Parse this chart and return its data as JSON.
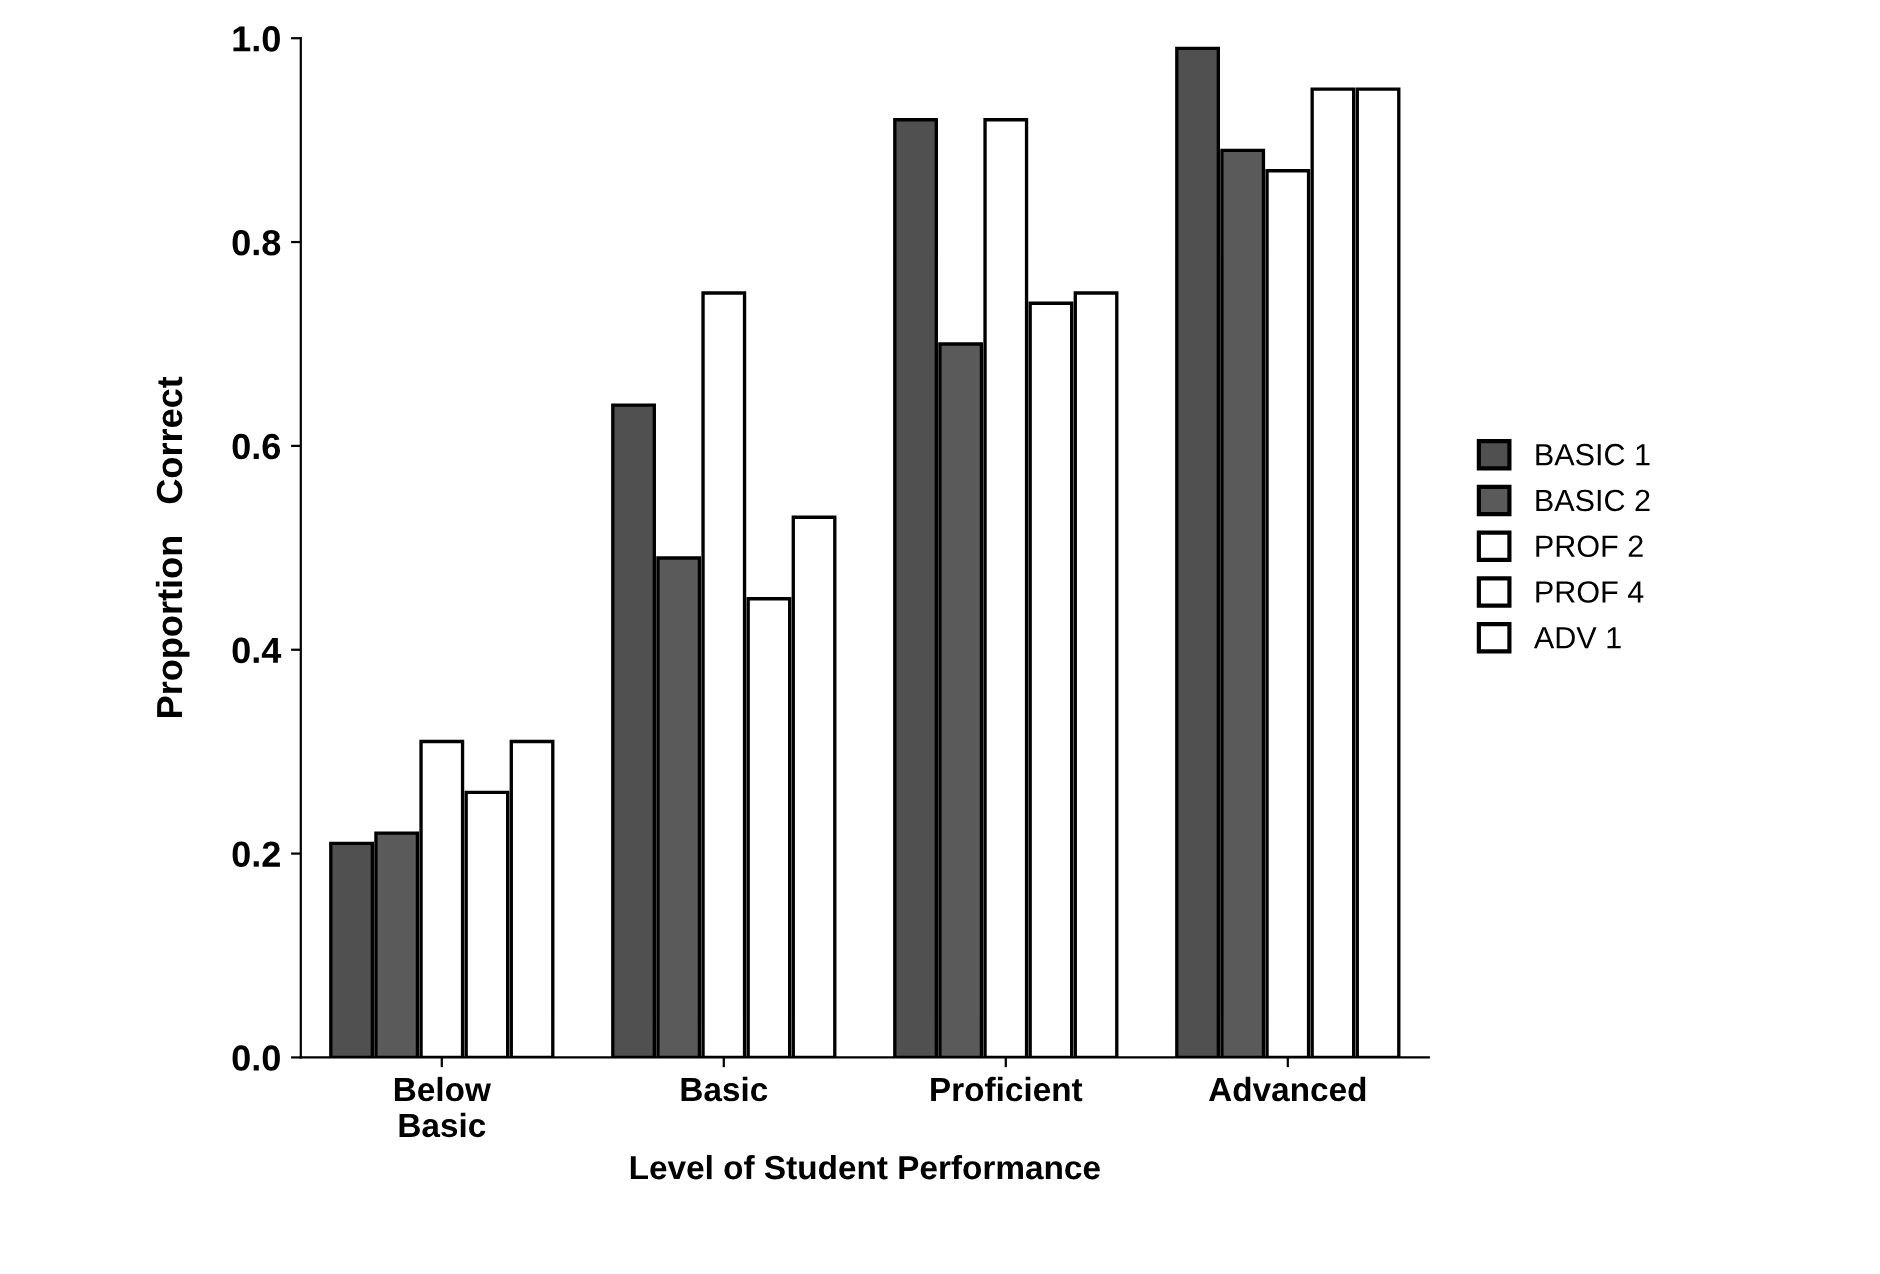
{
  "chart_data": {
    "type": "bar",
    "xlabel": "Level of Student Performance",
    "ylabel": "Proportion   Correct",
    "categories": [
      "Below\nBasic",
      "Basic",
      "Proficient",
      "Advanced"
    ],
    "series": [
      {
        "name": "BASIC 1",
        "color": "#505050",
        "values": [
          0.21,
          0.64,
          0.92,
          0.99
        ]
      },
      {
        "name": "BASIC 2",
        "color": "#5a5a5a",
        "values": [
          0.22,
          0.49,
          0.7,
          0.89
        ]
      },
      {
        "name": "PROF 2",
        "color": "#ffffff",
        "values": [
          0.31,
          0.75,
          0.92,
          0.87
        ]
      },
      {
        "name": "PROF 4",
        "color": "#ffffff",
        "values": [
          0.26,
          0.45,
          0.74,
          0.95
        ]
      },
      {
        "name": "ADV 1",
        "color": "#ffffff",
        "values": [
          0.31,
          0.53,
          0.75,
          0.95
        ]
      }
    ],
    "ylim": [
      0,
      1.0
    ],
    "yticks": [
      {
        "value": 0,
        "label": "0.0"
      },
      {
        "value": 0.2,
        "label": "0.2"
      },
      {
        "value": 0.4,
        "label": "0.4"
      },
      {
        "value": 0.6,
        "label": "0.6"
      },
      {
        "value": 0.8,
        "label": "0.8"
      },
      {
        "value": 1.0,
        "label": "1.0"
      }
    ],
    "grid": false,
    "legend": "right"
  }
}
